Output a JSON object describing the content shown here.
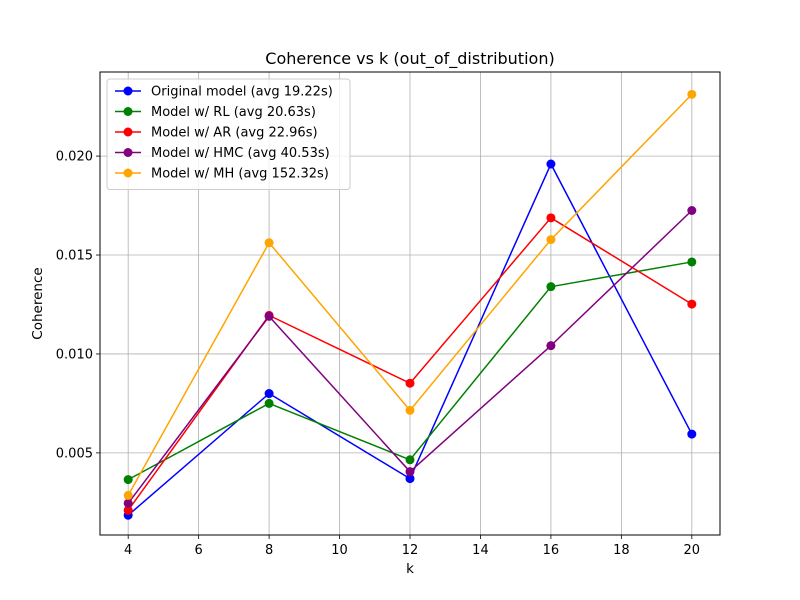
{
  "chart_data": {
    "type": "line",
    "title": "Coherence vs k (out_of_distribution)",
    "xlabel": "k",
    "ylabel": "Coherence",
    "x": [
      4,
      8,
      12,
      16,
      20
    ],
    "xlim": [
      3.2,
      20.8
    ],
    "ylim": [
      0.00085,
      0.02425
    ],
    "xticks": [
      4,
      6,
      8,
      10,
      12,
      14,
      16,
      18,
      20
    ],
    "yticks": [
      0.005,
      0.01,
      0.015,
      0.02
    ],
    "ytick_labels": [
      "0.005",
      "0.010",
      "0.015",
      "0.020"
    ],
    "grid": true,
    "legend_position": "top-left",
    "series": [
      {
        "name": "Original model (avg 19.22s)",
        "color": "#0000ff",
        "values": [
          0.00185,
          0.008,
          0.0037,
          0.0196,
          0.00595
        ]
      },
      {
        "name": "Model w/ RL (avg 20.63s)",
        "color": "#008000",
        "values": [
          0.00365,
          0.0075,
          0.00465,
          0.0134,
          0.01465
        ]
      },
      {
        "name": "Model w/ AR (avg 22.96s)",
        "color": "#ff0000",
        "values": [
          0.0021,
          0.01195,
          0.00852,
          0.01688,
          0.01252
        ]
      },
      {
        "name": "Model w/ HMC (avg 40.53s)",
        "color": "#800080",
        "values": [
          0.00245,
          0.0119,
          0.00405,
          0.01042,
          0.01725
        ]
      },
      {
        "name": "Model w/ MH (avg 152.32s)",
        "color": "#ffa500",
        "values": [
          0.00285,
          0.01562,
          0.00715,
          0.01578,
          0.02312
        ]
      }
    ]
  }
}
